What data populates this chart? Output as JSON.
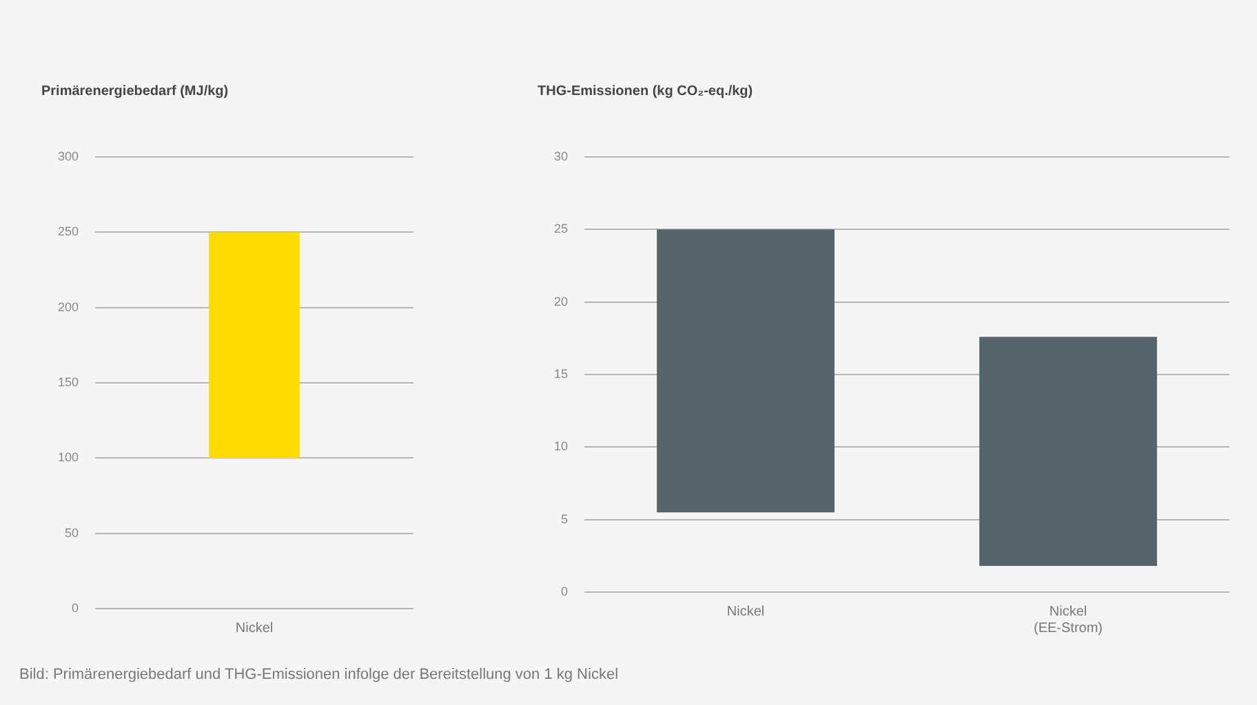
{
  "chart_data": [
    {
      "type": "bar",
      "title": "Primärenergiebedarf (MJ/kg)",
      "categories": [
        "Nickel"
      ],
      "base": [
        100
      ],
      "values": [
        150
      ],
      "color": "#ffdc00",
      "ylim": [
        0,
        300
      ],
      "yticks": [
        0,
        50,
        100,
        150,
        200,
        250,
        300
      ],
      "grid": "y",
      "legend": false,
      "annotations": [
        "Bild: Primärenergiebedarf und THG-Emissionen infolge der Bereitstellung von 1 kg Nickel"
      ]
    },
    {
      "type": "bar",
      "title": "THG-Emissionen (kg CO₂-eq./kg)",
      "categories": [
        "Nickel",
        "Nickel\n(EE-Strom)"
      ],
      "base": [
        5.5,
        1.8
      ],
      "values": [
        19.5,
        15.8
      ],
      "color": "#56646b",
      "ylim": [
        0,
        30
      ],
      "yticks": [
        0,
        5,
        10,
        15,
        20,
        25,
        30
      ],
      "grid": "y",
      "legend": false
    }
  ]
}
